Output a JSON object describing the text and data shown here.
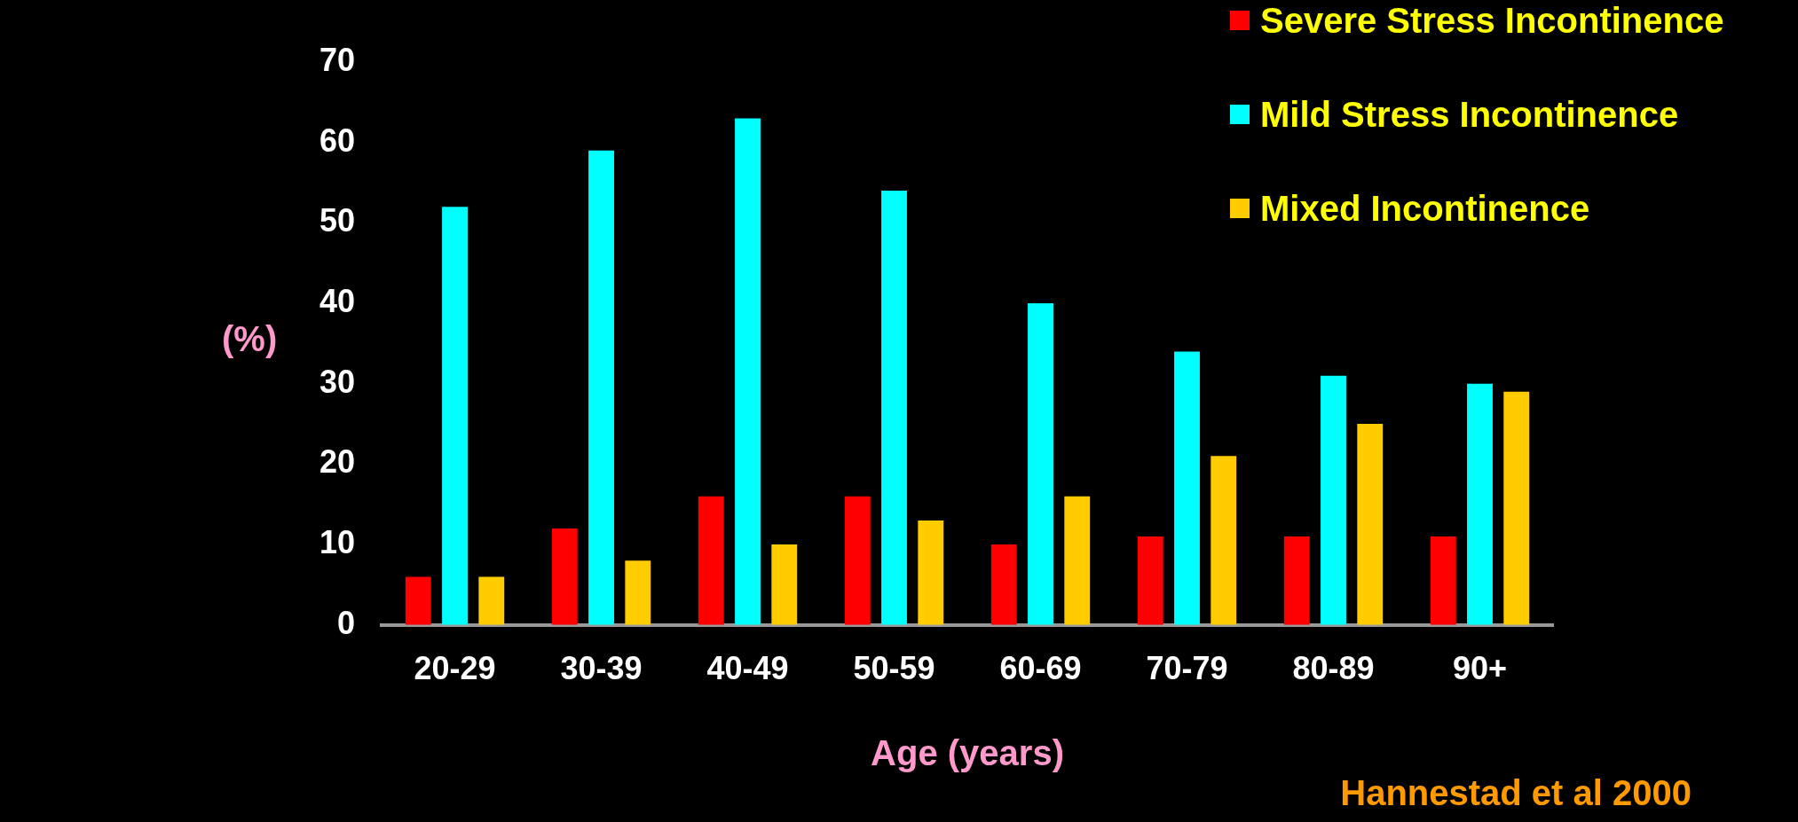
{
  "chart_data": {
    "type": "bar",
    "xlabel": "Age (years)",
    "ylabel": "(%)",
    "categories": [
      "20-29",
      "30-39",
      "40-49",
      "50-59",
      "60-69",
      "70-79",
      "80-89",
      "90+"
    ],
    "series": [
      {
        "name": "Severe Stress Incontinence",
        "color": "#ff0000",
        "values": [
          6,
          12,
          16,
          16,
          10,
          11,
          11,
          11
        ]
      },
      {
        "name": "Mild Stress Incontinence",
        "color": "#00ffff",
        "values": [
          52,
          59,
          63,
          54,
          40,
          34,
          31,
          30
        ]
      },
      {
        "name": "Mixed Incontinence",
        "color": "#ffcc00",
        "values": [
          6,
          8,
          10,
          13,
          16,
          21,
          25,
          29
        ]
      }
    ],
    "ylim": [
      0,
      70
    ],
    "yticks": [
      0,
      10,
      20,
      30,
      40,
      50,
      60,
      70
    ],
    "grid": false,
    "legend": "top right",
    "annotations": [
      "Hannestad et al 2000"
    ]
  }
}
